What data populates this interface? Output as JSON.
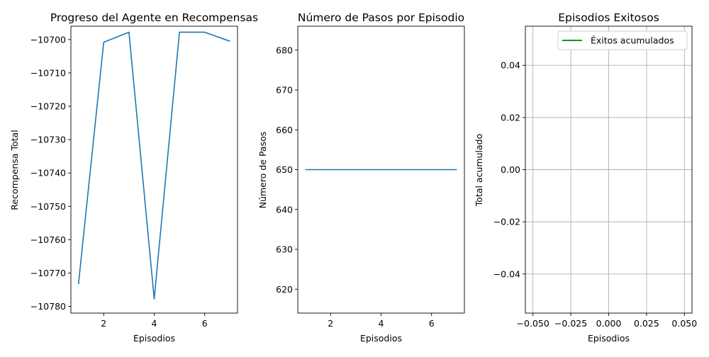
{
  "chart_data": [
    {
      "type": "line",
      "title": "Progreso del Agente en Recompensas",
      "xlabel": "Episodios",
      "ylabel": "Recompensa Total",
      "x": [
        1,
        2,
        3,
        4,
        5,
        6,
        7
      ],
      "series": [
        {
          "values": [
            -10773.3,
            -10700.8,
            -10697.8,
            -10777.8,
            -10697.8,
            -10697.8,
            -10700.5
          ],
          "color": "#1f77b4"
        }
      ],
      "xlim": [
        0.7,
        7.3
      ],
      "ylim": [
        -10782,
        -10696
      ],
      "xticks": [
        2,
        4,
        6
      ],
      "xtick_labels": [
        "2",
        "4",
        "6"
      ],
      "yticks": [
        -10780,
        -10770,
        -10760,
        -10750,
        -10740,
        -10730,
        -10720,
        -10710,
        -10700
      ],
      "ytick_labels": [
        "−10780",
        "−10770",
        "−10760",
        "−10750",
        "−10740",
        "−10730",
        "−10720",
        "−10710",
        "−10700"
      ],
      "grid": false
    },
    {
      "type": "line",
      "title": "Número de Pasos por Episodio",
      "xlabel": "Episodios",
      "ylabel": "Número de Pasos",
      "x": [
        1,
        2,
        3,
        4,
        5,
        6,
        7
      ],
      "series": [
        {
          "values": [
            650,
            650,
            650,
            650,
            650,
            650,
            650
          ],
          "color": "#1f77b4"
        }
      ],
      "xlim": [
        0.7,
        7.3
      ],
      "ylim": [
        614,
        686
      ],
      "xticks": [
        2,
        4,
        6
      ],
      "xtick_labels": [
        "2",
        "4",
        "6"
      ],
      "yticks": [
        620,
        630,
        640,
        650,
        660,
        670,
        680
      ],
      "ytick_labels": [
        "620",
        "630",
        "640",
        "650",
        "660",
        "670",
        "680"
      ],
      "grid": false
    },
    {
      "type": "line",
      "title": "Episodios Exitosos",
      "xlabel": "Episodios",
      "ylabel": "Total acumulado",
      "x": [],
      "series": [
        {
          "name": "Éxitos acumulados",
          "values": [],
          "color": "#008000"
        }
      ],
      "xlim": [
        -0.055,
        0.055
      ],
      "ylim": [
        -0.055,
        0.055
      ],
      "xticks": [
        -0.05,
        -0.025,
        0.0,
        0.025,
        0.05
      ],
      "xtick_labels": [
        "−0.050",
        "−0.025",
        "0.000",
        "0.025",
        "0.050"
      ],
      "yticks": [
        -0.04,
        -0.02,
        0.0,
        0.02,
        0.04
      ],
      "ytick_labels": [
        "−0.04",
        "−0.02",
        "0.00",
        "0.02",
        "0.04"
      ],
      "grid": true,
      "legend": "top-right"
    }
  ]
}
